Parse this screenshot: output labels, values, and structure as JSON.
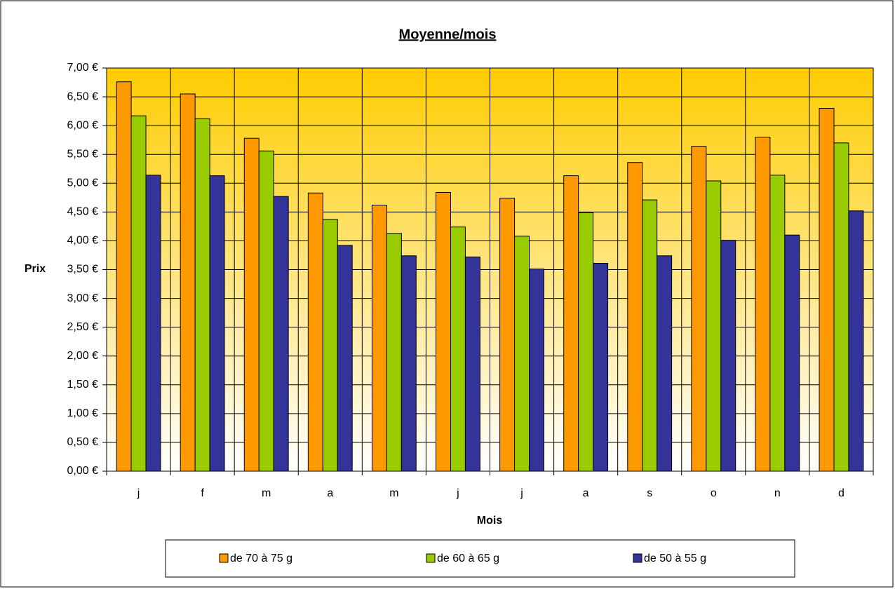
{
  "chart_data": {
    "type": "bar",
    "title": "Moyenne/mois",
    "x_label": "Mois",
    "y_label": "Prix",
    "categories": [
      "j",
      "f",
      "m",
      "a",
      "m",
      "j",
      "j",
      "a",
      "s",
      "o",
      "n",
      "d"
    ],
    "series": [
      {
        "name": "de 70 à 75 g",
        "color": "#ff9900",
        "values": [
          6.76,
          6.55,
          5.78,
          4.83,
          4.62,
          4.84,
          4.74,
          5.13,
          5.36,
          5.64,
          5.8,
          6.3
        ]
      },
      {
        "name": "de 60 à 65 g",
        "color": "#99cc00",
        "values": [
          6.17,
          6.12,
          5.56,
          4.37,
          4.13,
          4.24,
          4.08,
          4.49,
          4.71,
          5.04,
          5.14,
          5.7
        ]
      },
      {
        "name": "de 50 à 55 g",
        "color": "#333399",
        "values": [
          5.14,
          5.13,
          4.77,
          3.92,
          3.74,
          3.72,
          3.51,
          3.61,
          3.74,
          4.01,
          4.1,
          4.52
        ]
      }
    ],
    "ylim": [
      0,
      7
    ],
    "yticks": [
      {
        "value": 0,
        "label": "0,00 €"
      },
      {
        "value": 0.5,
        "label": "0,50 €"
      },
      {
        "value": 1,
        "label": "1,00 €"
      },
      {
        "value": 1.5,
        "label": "1,50 €"
      },
      {
        "value": 2,
        "label": "2,00 €"
      },
      {
        "value": 2.5,
        "label": "2,50 €"
      },
      {
        "value": 3,
        "label": "3,00 €"
      },
      {
        "value": 3.5,
        "label": "3,50 €"
      },
      {
        "value": 4,
        "label": "4,00 €"
      },
      {
        "value": 4.5,
        "label": "4,50 €"
      },
      {
        "value": 5,
        "label": "5,00 €"
      },
      {
        "value": 5.5,
        "label": "5,50 €"
      },
      {
        "value": 6,
        "label": "6,00 €"
      },
      {
        "value": 6.5,
        "label": "6,50 €"
      },
      {
        "value": 7,
        "label": "7,00 €"
      }
    ],
    "grid": true,
    "legend": "bottom"
  }
}
